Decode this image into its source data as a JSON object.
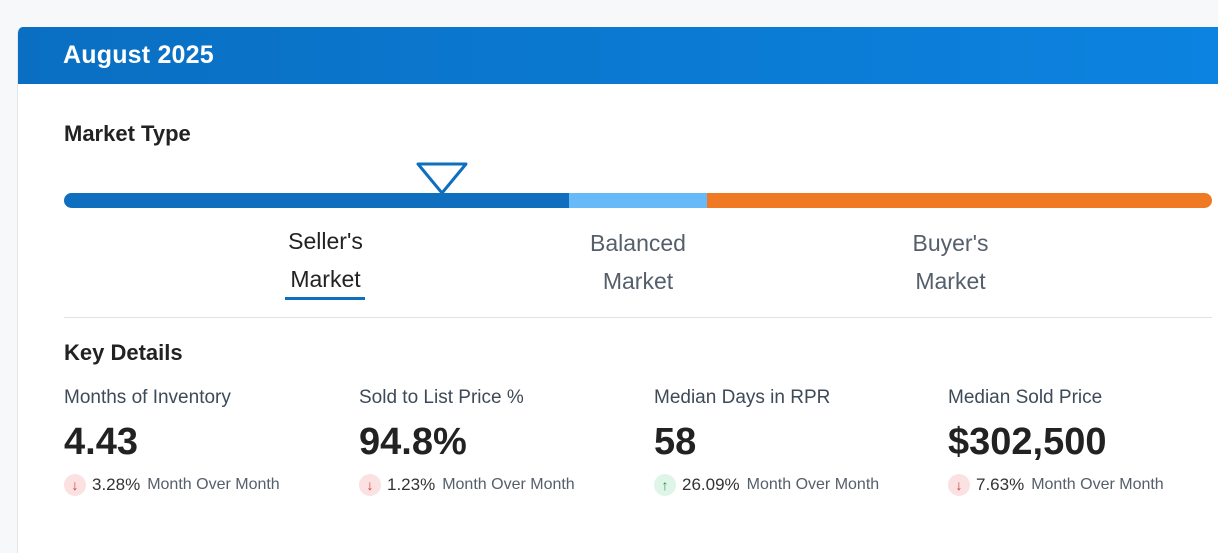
{
  "header": {
    "title": "August 2025"
  },
  "market_type": {
    "title": "Market Type",
    "labels": {
      "seller_line1": "Seller's",
      "seller_line2": "Market",
      "balanced_line1": "Balanced",
      "balanced_line2": "Market",
      "buyer_line1": "Buyer's",
      "buyer_line2": "Market"
    },
    "active": "seller",
    "colors": {
      "seller": "#0f6fbe",
      "balanced": "#67b9f7",
      "buyer": "#ef7a23"
    }
  },
  "key_details": {
    "title": "Key Details",
    "stats": [
      {
        "label": "Months of Inventory",
        "value": "4.43",
        "direction": "down",
        "arrow": "↓",
        "change": "3.28%",
        "period": "Month Over Month"
      },
      {
        "label": "Sold to List Price %",
        "value": "94.8%",
        "direction": "down",
        "arrow": "↓",
        "change": "1.23%",
        "period": "Month Over Month"
      },
      {
        "label": "Median Days in RPR",
        "value": "58",
        "direction": "up",
        "arrow": "↑",
        "change": "26.09%",
        "period": "Month Over Month"
      },
      {
        "label": "Median Sold Price",
        "value": "$302,500",
        "direction": "down",
        "arrow": "↓",
        "change": "7.63%",
        "period": "Month Over Month"
      }
    ]
  }
}
